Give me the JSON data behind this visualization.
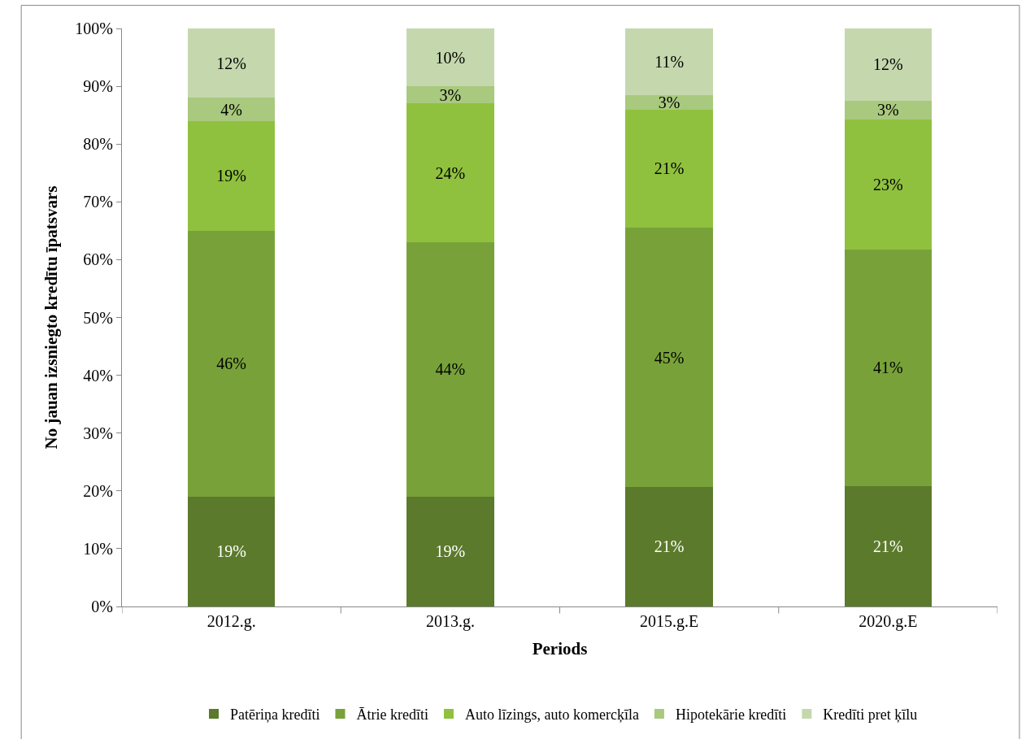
{
  "chart_data": {
    "type": "bar",
    "stacked": true,
    "xlabel": "Periods",
    "ylabel": "No jauan izsniegto kredītu īpatsvars",
    "categories": [
      "2012.g.",
      "2013.g.",
      "2015.g.E",
      "2020.g.E"
    ],
    "series": [
      {
        "name": "Patēriņa kredīti",
        "color": "#5b7a2b",
        "values": [
          19,
          19,
          20.7,
          20.8
        ],
        "value_labels": [
          "19%",
          "19%",
          "21%",
          "21%"
        ]
      },
      {
        "name": "Ātrie kredīti",
        "color": "#78a239",
        "values": [
          46,
          44,
          44.8,
          41
        ],
        "value_labels": [
          "46%",
          "44%",
          "45%",
          "41%"
        ]
      },
      {
        "name": "Auto līzings, auto komercķīla",
        "color": "#8fc13f",
        "values": [
          19,
          24,
          20.5,
          22.5
        ],
        "value_labels": [
          "19%",
          "24%",
          "21%",
          "23%"
        ]
      },
      {
        "name": "Hipotekārie kredīti",
        "color": "#a9c97e",
        "values": [
          4,
          3,
          2.5,
          3.2
        ],
        "value_labels": [
          "4%",
          "3%",
          "3%",
          "3%"
        ]
      },
      {
        "name": "Kredīti pret ķīlu",
        "color": "#c5d8ad",
        "values": [
          12,
          10,
          11.5,
          12.5
        ],
        "value_labels": [
          "12%",
          "10%",
          "11%",
          "12%"
        ]
      }
    ],
    "ylim": [
      0,
      100
    ],
    "yticks": [
      {
        "value": 0,
        "label": "0%"
      },
      {
        "value": 10,
        "label": "10%"
      },
      {
        "value": 20,
        "label": "20%"
      },
      {
        "value": 30,
        "label": "30%"
      },
      {
        "value": 40,
        "label": "40%"
      },
      {
        "value": 50,
        "label": "50%"
      },
      {
        "value": 60,
        "label": "60%"
      },
      {
        "value": 70,
        "label": "70%"
      },
      {
        "value": 80,
        "label": "80%"
      },
      {
        "value": 90,
        "label": "90%"
      },
      {
        "value": 100,
        "label": "100%"
      }
    ],
    "legend": "bottom"
  }
}
